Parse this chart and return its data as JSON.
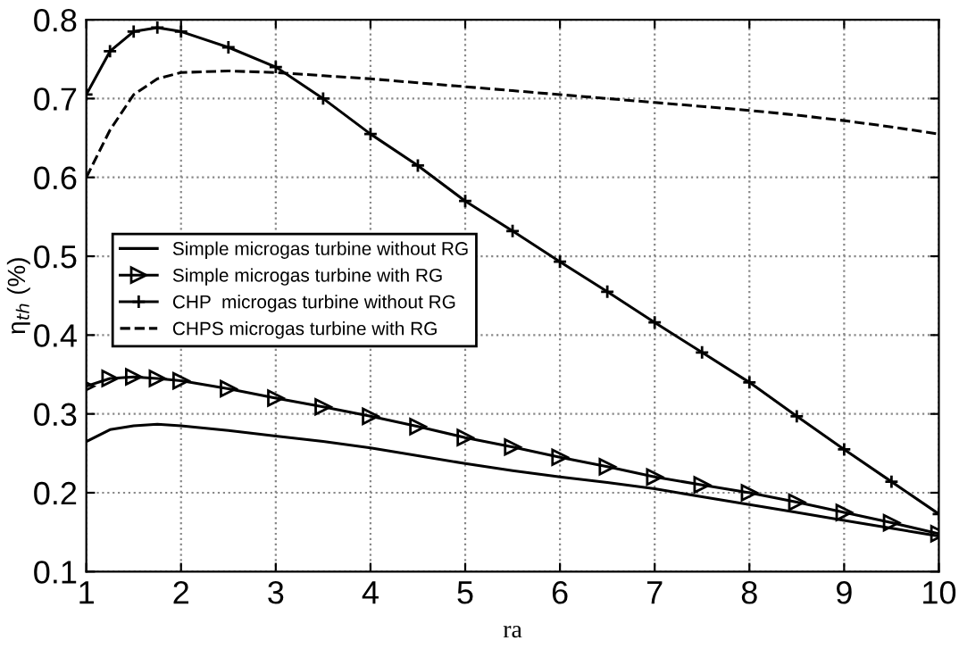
{
  "chart_data": {
    "type": "line",
    "xlabel": "ra",
    "ylabel": "η$_{th}$ (%)",
    "x": [
      1,
      1.25,
      1.5,
      1.75,
      2,
      2.5,
      3,
      3.5,
      4,
      4.5,
      5,
      5.5,
      6,
      6.5,
      7,
      7.5,
      8,
      8.5,
      9,
      9.5,
      10
    ],
    "series": [
      {
        "name": "Simple microgas turbine without RG",
        "color": "#000000",
        "marker": "none",
        "line_style": "solid",
        "values": [
          0.265,
          0.28,
          0.285,
          0.287,
          0.285,
          0.279,
          0.272,
          0.265,
          0.257,
          0.247,
          0.237,
          0.228,
          0.22,
          0.213,
          0.205,
          0.195,
          0.185,
          0.175,
          0.165,
          0.155,
          0.145
        ]
      },
      {
        "name": "Simple microgas turbine with RG",
        "color": "#000000",
        "marker": "triangle",
        "line_style": "solid",
        "values": [
          0.335,
          0.345,
          0.347,
          0.345,
          0.342,
          0.332,
          0.32,
          0.309,
          0.297,
          0.284,
          0.27,
          0.258,
          0.245,
          0.233,
          0.22,
          0.21,
          0.2,
          0.188,
          0.175,
          0.162,
          0.148
        ]
      },
      {
        "name": "CHP  microgas turbine without RG",
        "color": "#000000",
        "marker": "cross",
        "line_style": "solid",
        "values": [
          0.705,
          0.76,
          0.785,
          0.79,
          0.785,
          0.765,
          0.74,
          0.7,
          0.655,
          0.615,
          0.57,
          0.532,
          0.493,
          0.455,
          0.416,
          0.378,
          0.34,
          0.297,
          0.255,
          0.214,
          0.173
        ]
      },
      {
        "name": "CHPS microgas turbine with RG",
        "color": "#000000",
        "marker": "none",
        "line_style": "dashed",
        "values": [
          0.6,
          0.66,
          0.705,
          0.725,
          0.733,
          0.735,
          0.733,
          0.729,
          0.725,
          0.72,
          0.715,
          0.71,
          0.705,
          0.7,
          0.695,
          0.69,
          0.685,
          0.679,
          0.672,
          0.664,
          0.655
        ]
      }
    ],
    "xlim": [
      1,
      10
    ],
    "ylim": [
      0.1,
      0.8
    ],
    "xticks": [
      1,
      2,
      3,
      4,
      5,
      6,
      7,
      8,
      9,
      10
    ],
    "yticks": [
      0.1,
      0.2,
      0.3,
      0.4,
      0.5,
      0.6,
      0.7,
      0.8
    ],
    "grid": true,
    "legend": "center left"
  }
}
